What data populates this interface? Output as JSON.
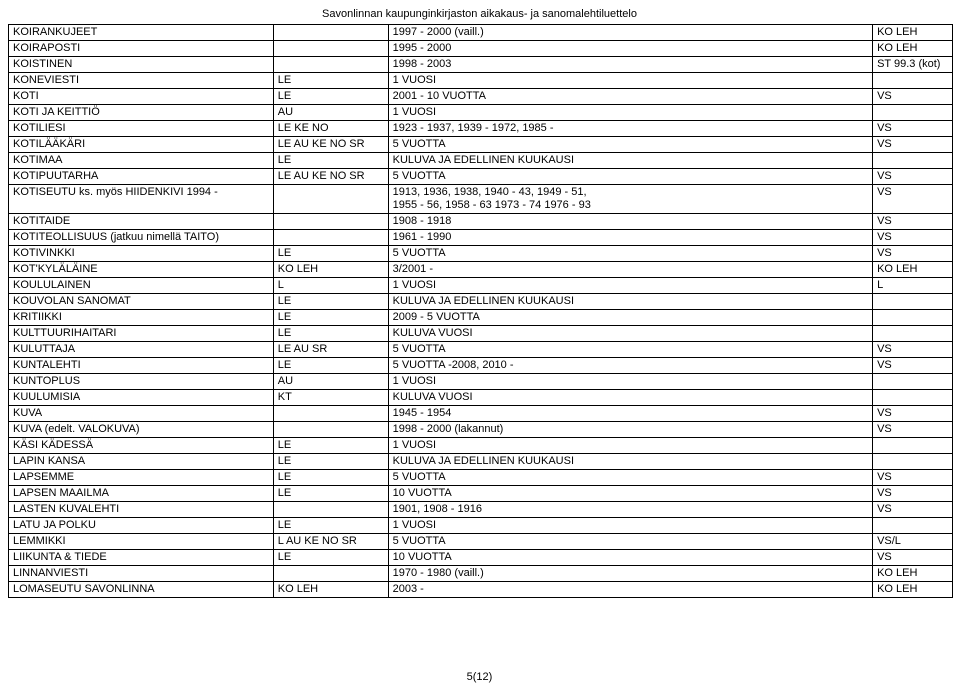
{
  "header": "Savonlinnan kaupunginkirjaston aikakaus- ja sanomalehtiluettelo",
  "footer": "5(12)",
  "table": {
    "rows": [
      {
        "c": [
          "KOIRANKUJEET",
          "",
          "1997 - 2000 (vaill.)",
          "KO LEH"
        ]
      },
      {
        "c": [
          "KOIRAPOSTI",
          "",
          "1995 - 2000",
          "KO LEH"
        ]
      },
      {
        "c": [
          "KOISTINEN",
          "",
          "1998 - 2003",
          "ST 99.3 (kot)"
        ]
      },
      {
        "c": [
          "KONEVIESTI",
          "LE",
          "1 VUOSI",
          ""
        ]
      },
      {
        "c": [
          "KOTI",
          "LE",
          "2001 - 10 VUOTTA",
          "VS"
        ]
      },
      {
        "c": [
          "KOTI JA KEITTIÖ",
          "AU",
          "1 VUOSI",
          ""
        ]
      },
      {
        "c": [
          "KOTILIESI",
          "LE KE NO",
          "1923 - 1937, 1939 - 1972, 1985 -",
          "VS"
        ]
      },
      {
        "c": [
          "KOTILÄÄKÄRI",
          "LE AU KE NO SR",
          "5 VUOTTA",
          "VS"
        ]
      },
      {
        "c": [
          "KOTIMAA",
          "LE",
          "KULUVA JA EDELLINEN KUUKAUSI",
          ""
        ]
      },
      {
        "c": [
          "KOTIPUUTARHA",
          "LE AU KE NO SR",
          "5 VUOTTA",
          "VS"
        ]
      },
      {
        "c": [
          "KOTISEUTU ks. myös HIIDENKIVI 1994 -",
          "",
          "1913, 1936, 1938,  1940 - 43, 1949 - 51,\n1955 - 56, 1958 - 63 1973 - 74 1976 - 93",
          "VS"
        ]
      },
      {
        "c": [
          "KOTITAIDE",
          "",
          "1908 - 1918",
          "VS"
        ]
      },
      {
        "c": [
          "KOTITEOLLISUUS (jatkuu nimellä TAITO)",
          "",
          "1961 - 1990",
          "VS"
        ]
      },
      {
        "c": [
          "KOTIVINKKI",
          "LE",
          "5 VUOTTA",
          "VS"
        ]
      },
      {
        "c": [
          "KOT'KYLÄLÄINE",
          "KO LEH",
          "3/2001 -",
          "KO LEH"
        ]
      },
      {
        "c": [
          "KOULULAINEN",
          "L",
          "1 VUOSI",
          "L"
        ]
      },
      {
        "c": [
          "KOUVOLAN SANOMAT",
          "LE",
          "KULUVA JA EDELLINEN KUUKAUSI",
          ""
        ]
      },
      {
        "c": [
          "KRITIIKKI",
          "LE",
          "2009 - 5 VUOTTA",
          ""
        ]
      },
      {
        "c": [
          "KULTTUURIHAITARI",
          "LE",
          "KULUVA VUOSI",
          ""
        ]
      },
      {
        "c": [
          "KULUTTAJA",
          "LE AU SR",
          "5 VUOTTA",
          "VS"
        ]
      },
      {
        "c": [
          "KUNTALEHTI",
          "LE",
          "5 VUOTTA -2008, 2010 -",
          "VS"
        ]
      },
      {
        "c": [
          "KUNTOPLUS",
          "AU",
          "1 VUOSI",
          ""
        ]
      },
      {
        "c": [
          "KUULUMISIA",
          "KT",
          "KULUVA VUOSI",
          ""
        ]
      },
      {
        "c": [
          "KUVA",
          "",
          "1945 - 1954",
          "VS"
        ]
      },
      {
        "c": [
          "KUVA (edelt. VALOKUVA)",
          "",
          "1998 - 2000 (lakannut)",
          "VS"
        ]
      },
      {
        "c": [
          "KÄSI KÄDESSÄ",
          "LE",
          "1 VUOSI",
          ""
        ]
      },
      {
        "c": [
          "LAPIN KANSA",
          "LE",
          "KULUVA JA EDELLINEN KUUKAUSI",
          ""
        ]
      },
      {
        "c": [
          "LAPSEMME",
          "LE",
          "5 VUOTTA",
          "VS"
        ]
      },
      {
        "c": [
          "LAPSEN MAAILMA",
          "LE",
          "10 VUOTTA",
          "VS"
        ]
      },
      {
        "c": [
          "LASTEN KUVALEHTI",
          "",
          "1901, 1908 - 1916",
          "VS"
        ]
      },
      {
        "c": [
          "LATU JA POLKU",
          "LE",
          "1 VUOSI",
          ""
        ]
      },
      {
        "c": [
          "LEMMIKKI",
          "L AU KE NO SR",
          "5 VUOTTA",
          "VS/L"
        ]
      },
      {
        "c": [
          "LIIKUNTA & TIEDE",
          "LE",
          "10 VUOTTA",
          "VS"
        ]
      },
      {
        "c": [
          "LINNANVIESTI",
          "",
          "1970 - 1980 (vaill.)",
          "KO LEH"
        ]
      },
      {
        "c": [
          "LOMASEUTU SAVONLINNA",
          "KO LEH",
          "2003 -",
          "KO LEH"
        ]
      }
    ]
  }
}
